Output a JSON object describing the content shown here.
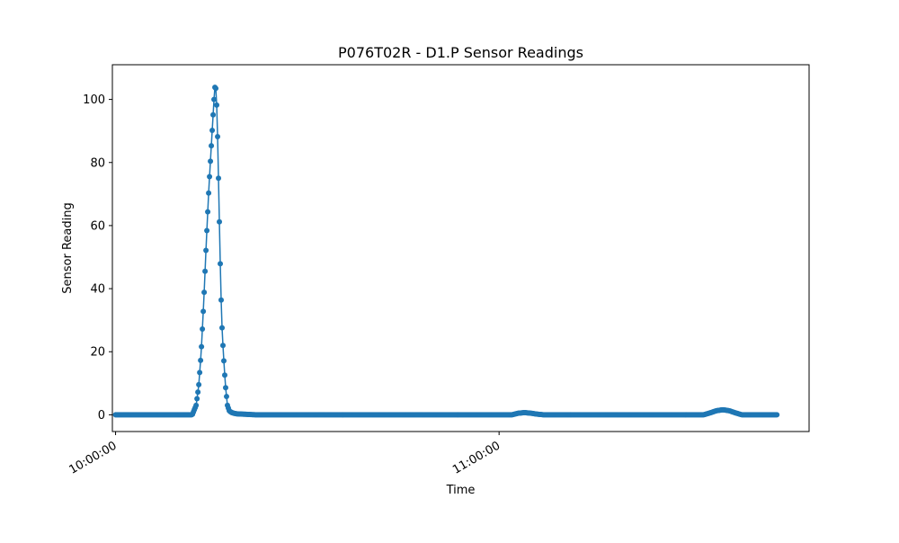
{
  "chart_data": {
    "type": "line",
    "title": "P076T02R - D1.P Sensor Readings",
    "xlabel": "Time",
    "ylabel": "Sensor Reading",
    "x_tick_labels": [
      "10:00:00",
      "11:00:00"
    ],
    "x_ticks_minutes": [
      0,
      60
    ],
    "xlim_minutes": [
      -0.5,
      108.5
    ],
    "ylim": [
      -5.3,
      111
    ],
    "y_ticks": [
      0,
      20,
      40,
      60,
      80,
      100
    ],
    "grid": false,
    "legend": "none",
    "marker": "circle",
    "color": "#1f77b4",
    "series": [
      {
        "x_minutes": [
          0.0,
          12.0,
          12.6,
          13.0,
          13.4,
          13.8,
          14.2,
          14.6,
          15.0,
          15.2,
          15.4,
          15.6,
          15.7,
          15.85,
          16.0,
          16.2,
          16.4,
          16.6,
          16.8,
          17.0,
          17.2,
          17.5,
          17.8,
          18.2,
          18.5,
          19.0,
          20.0,
          21.0,
          22.0,
          62.0,
          63.0,
          64.0,
          65.0,
          66.0,
          67.0,
          92.0,
          93.0,
          94.0,
          95.0,
          96.0,
          97.0,
          98.0,
          103.5
        ],
        "y": [
          0,
          0,
          3,
          9,
          20,
          36,
          55,
          72,
          86,
          93,
          100,
          105.5,
          103,
          97,
          85,
          65,
          46,
          30,
          22,
          15,
          9,
          3,
          1.2,
          0.7,
          0.5,
          0.3,
          0.2,
          0.1,
          0,
          0,
          0.5,
          0.7,
          0.5,
          0.2,
          0,
          0,
          0.6,
          1.3,
          1.6,
          1.3,
          0.6,
          0,
          0
        ]
      }
    ]
  }
}
